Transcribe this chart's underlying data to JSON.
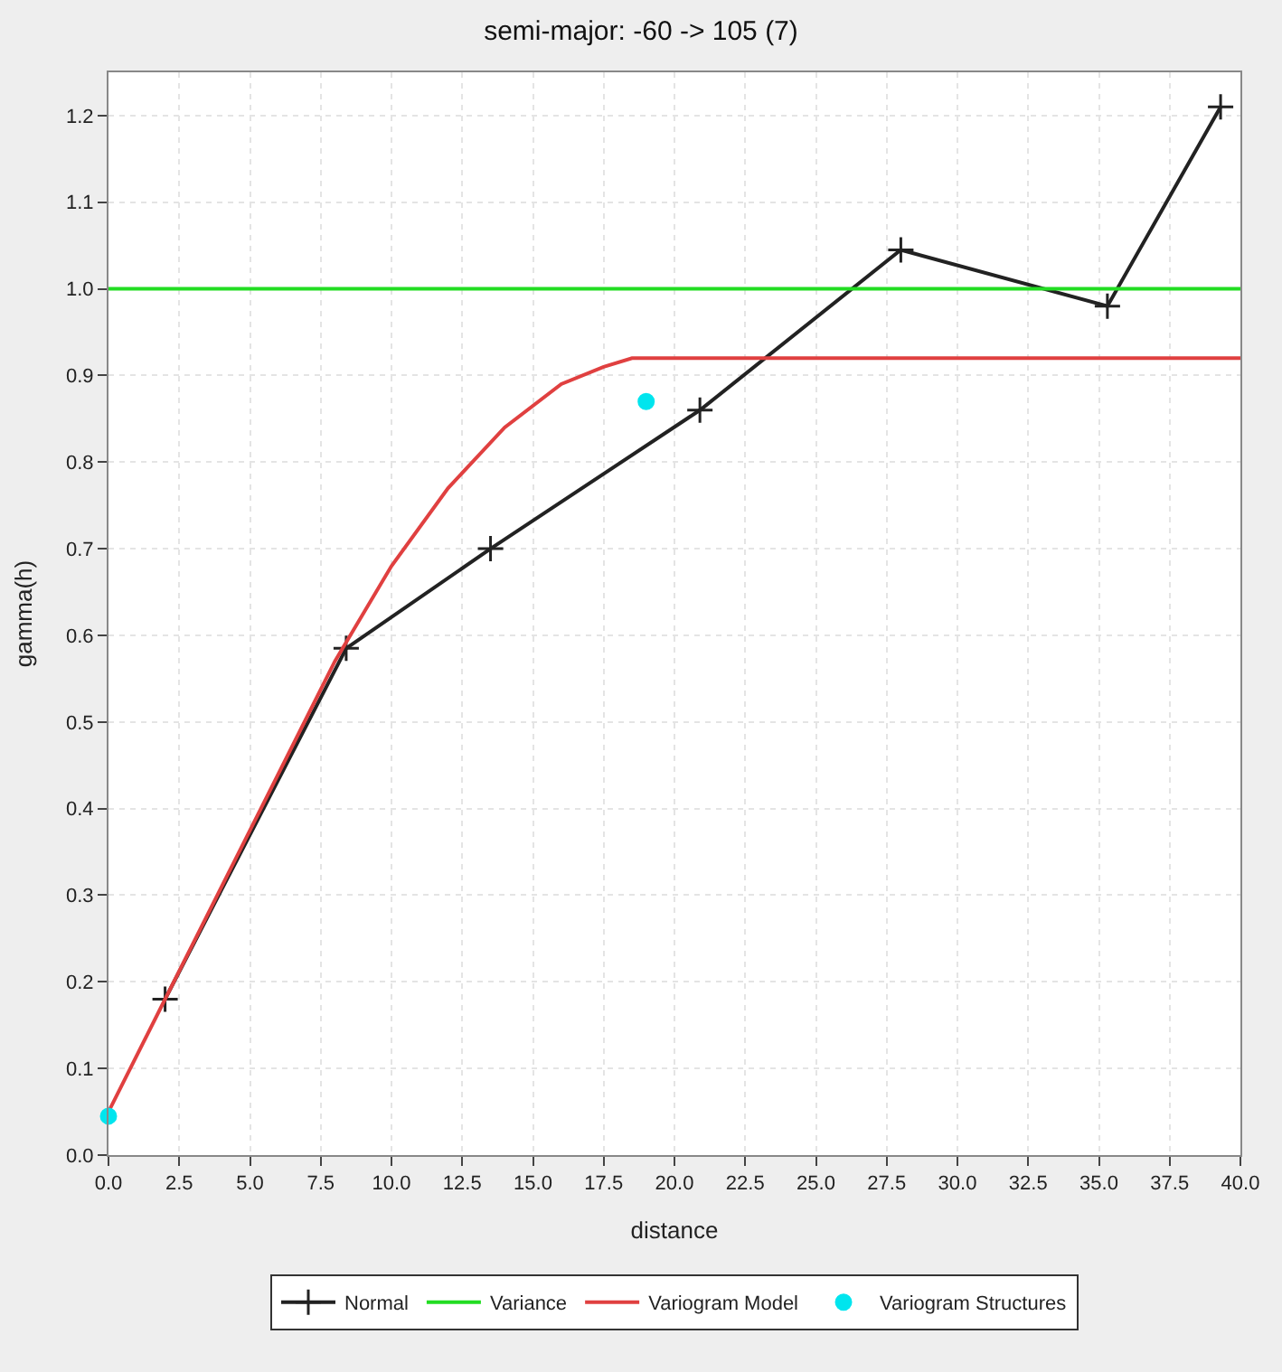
{
  "chart_data": {
    "type": "line",
    "title": "semi-major: -60 -> 105 (7)",
    "xlabel": "distance",
    "ylabel": "gamma(h)",
    "xlim": [
      0,
      40
    ],
    "xticks": [
      {
        "value": 0,
        "label": "0.0"
      },
      2.5,
      {
        "value": 5,
        "label": "5.0"
      },
      7.5,
      {
        "value": 10,
        "label": "10.0"
      },
      12.5,
      {
        "value": 15,
        "label": "15.0"
      },
      17.5,
      {
        "value": 20,
        "label": "20.0"
      },
      22.5,
      {
        "value": 25,
        "label": "25.0"
      },
      27.5,
      {
        "value": 30,
        "label": "30.0"
      },
      32.5,
      {
        "value": 35,
        "label": "35.0"
      },
      37.5,
      {
        "value": 40,
        "label": "40.0"
      }
    ],
    "ylim": [
      0,
      1.25
    ],
    "yticks": [
      {
        "value": 0,
        "label": "0.0"
      },
      0.1,
      0.2,
      0.3,
      0.4,
      0.5,
      0.6,
      0.7,
      0.8,
      0.9,
      {
        "value": 1,
        "label": "1.0"
      },
      1.1,
      1.2
    ],
    "grid": true,
    "legend": "bottom",
    "series": [
      {
        "name": "Normal",
        "color": "#222222",
        "marker": "cross",
        "x": [
          2.0,
          8.4,
          13.5,
          20.9,
          28.0,
          35.3,
          39.3
        ],
        "values": [
          0.18,
          0.585,
          0.7,
          0.86,
          1.045,
          0.98,
          1.21
        ]
      },
      {
        "name": "Variance",
        "color": "#22dd22",
        "marker": "none",
        "x": [
          0,
          40
        ],
        "values": [
          1.0,
          1.0
        ]
      },
      {
        "name": "Variogram Model",
        "color": "#e04040",
        "marker": "none",
        "x": [
          0,
          2,
          4,
          6,
          8,
          10,
          12,
          14,
          16,
          17.5,
          18.5,
          40
        ],
        "values": [
          0.05,
          0.18,
          0.31,
          0.44,
          0.57,
          0.68,
          0.77,
          0.84,
          0.89,
          0.91,
          0.92,
          0.92
        ]
      },
      {
        "name": "Variogram Structures",
        "color": "#00e5ee",
        "type": "scatter",
        "marker": "circle",
        "x": [
          0,
          19
        ],
        "values": [
          0.045,
          0.87
        ]
      }
    ]
  }
}
